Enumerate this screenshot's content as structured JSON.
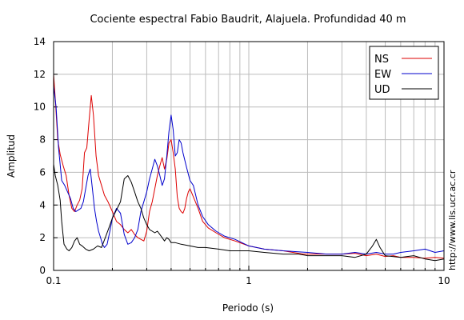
{
  "chart_data": {
    "type": "line",
    "title": "Cociente espectral Fabio Baudrit, Alajuela. Profundidad 40 m",
    "xlabel": "Periodo (s)",
    "ylabel": "Amplitud",
    "xscale": "log",
    "xlim": [
      0.1,
      10
    ],
    "ylim": [
      0,
      14
    ],
    "x_ticks": [
      0.1,
      1,
      10
    ],
    "x_tick_labels": [
      "0.1",
      "1",
      "10"
    ],
    "y_ticks": [
      0,
      2,
      4,
      6,
      8,
      10,
      12,
      14
    ],
    "y_tick_labels": [
      "0",
      "2",
      "4",
      "6",
      "8",
      "10",
      "12",
      "14"
    ],
    "grid": true,
    "legend_position": "top-right",
    "series": [
      {
        "name": "NS",
        "color": "#dd0000",
        "points": [
          [
            0.1,
            12.0
          ],
          [
            0.102,
            10.5
          ],
          [
            0.105,
            8.0
          ],
          [
            0.108,
            7.1
          ],
          [
            0.112,
            6.4
          ],
          [
            0.116,
            5.8
          ],
          [
            0.12,
            4.6
          ],
          [
            0.124,
            3.8
          ],
          [
            0.128,
            3.6
          ],
          [
            0.132,
            4.0
          ],
          [
            0.136,
            4.3
          ],
          [
            0.14,
            5.0
          ],
          [
            0.144,
            7.2
          ],
          [
            0.148,
            7.5
          ],
          [
            0.152,
            9.2
          ],
          [
            0.156,
            10.7
          ],
          [
            0.16,
            9.5
          ],
          [
            0.165,
            7.0
          ],
          [
            0.17,
            5.8
          ],
          [
            0.176,
            5.2
          ],
          [
            0.182,
            4.6
          ],
          [
            0.19,
            4.2
          ],
          [
            0.2,
            3.6
          ],
          [
            0.21,
            3.0
          ],
          [
            0.22,
            2.8
          ],
          [
            0.23,
            2.5
          ],
          [
            0.24,
            2.3
          ],
          [
            0.25,
            2.5
          ],
          [
            0.26,
            2.2
          ],
          [
            0.27,
            2.0
          ],
          [
            0.28,
            1.9
          ],
          [
            0.29,
            1.8
          ],
          [
            0.3,
            2.4
          ],
          [
            0.31,
            3.6
          ],
          [
            0.32,
            4.2
          ],
          [
            0.33,
            5.0
          ],
          [
            0.34,
            5.8
          ],
          [
            0.35,
            6.4
          ],
          [
            0.36,
            6.9
          ],
          [
            0.37,
            6.2
          ],
          [
            0.38,
            6.8
          ],
          [
            0.39,
            7.8
          ],
          [
            0.4,
            8.0
          ],
          [
            0.41,
            7.2
          ],
          [
            0.42,
            6.2
          ],
          [
            0.43,
            4.5
          ],
          [
            0.44,
            3.8
          ],
          [
            0.45,
            3.6
          ],
          [
            0.46,
            3.5
          ],
          [
            0.47,
            3.8
          ],
          [
            0.48,
            4.4
          ],
          [
            0.49,
            4.8
          ],
          [
            0.5,
            5.0
          ],
          [
            0.52,
            4.5
          ],
          [
            0.55,
            3.8
          ],
          [
            0.58,
            3.0
          ],
          [
            0.62,
            2.6
          ],
          [
            0.68,
            2.3
          ],
          [
            0.75,
            2.0
          ],
          [
            0.85,
            1.8
          ],
          [
            1.0,
            1.5
          ],
          [
            1.2,
            1.3
          ],
          [
            1.5,
            1.2
          ],
          [
            1.9,
            1.0
          ],
          [
            2.5,
            1.0
          ],
          [
            3.0,
            1.0
          ],
          [
            3.5,
            1.05
          ],
          [
            4.0,
            0.9
          ],
          [
            4.5,
            1.0
          ],
          [
            5.0,
            0.85
          ],
          [
            5.5,
            0.9
          ],
          [
            6.0,
            0.8
          ],
          [
            7.0,
            0.8
          ],
          [
            8.0,
            0.75
          ],
          [
            9.0,
            0.8
          ],
          [
            10.0,
            0.75
          ]
        ]
      },
      {
        "name": "EW",
        "color": "#0000cc",
        "points": [
          [
            0.1,
            11.3
          ],
          [
            0.103,
            10.0
          ],
          [
            0.106,
            7.5
          ],
          [
            0.11,
            5.5
          ],
          [
            0.114,
            5.2
          ],
          [
            0.118,
            4.8
          ],
          [
            0.122,
            4.4
          ],
          [
            0.126,
            3.8
          ],
          [
            0.13,
            3.6
          ],
          [
            0.134,
            3.7
          ],
          [
            0.138,
            3.8
          ],
          [
            0.142,
            4.2
          ],
          [
            0.146,
            5.0
          ],
          [
            0.15,
            5.8
          ],
          [
            0.154,
            6.2
          ],
          [
            0.158,
            5.0
          ],
          [
            0.162,
            3.8
          ],
          [
            0.166,
            3.0
          ],
          [
            0.17,
            2.4
          ],
          [
            0.174,
            2.0
          ],
          [
            0.178,
            1.6
          ],
          [
            0.182,
            1.4
          ],
          [
            0.188,
            1.6
          ],
          [
            0.195,
            2.5
          ],
          [
            0.2,
            3.2
          ],
          [
            0.21,
            3.8
          ],
          [
            0.22,
            3.5
          ],
          [
            0.23,
            2.2
          ],
          [
            0.24,
            1.6
          ],
          [
            0.25,
            1.7
          ],
          [
            0.26,
            2.0
          ],
          [
            0.27,
            2.5
          ],
          [
            0.28,
            3.6
          ],
          [
            0.29,
            4.2
          ],
          [
            0.3,
            4.8
          ],
          [
            0.31,
            5.6
          ],
          [
            0.32,
            6.2
          ],
          [
            0.33,
            6.8
          ],
          [
            0.34,
            6.4
          ],
          [
            0.35,
            5.8
          ],
          [
            0.36,
            5.2
          ],
          [
            0.37,
            5.6
          ],
          [
            0.38,
            7.0
          ],
          [
            0.39,
            8.5
          ],
          [
            0.4,
            9.5
          ],
          [
            0.41,
            8.6
          ],
          [
            0.42,
            7.0
          ],
          [
            0.43,
            7.2
          ],
          [
            0.44,
            8.0
          ],
          [
            0.45,
            7.8
          ],
          [
            0.46,
            7.2
          ],
          [
            0.48,
            6.3
          ],
          [
            0.5,
            5.5
          ],
          [
            0.52,
            5.2
          ],
          [
            0.55,
            4.0
          ],
          [
            0.58,
            3.3
          ],
          [
            0.62,
            2.8
          ],
          [
            0.68,
            2.4
          ],
          [
            0.75,
            2.1
          ],
          [
            0.85,
            1.9
          ],
          [
            1.0,
            1.5
          ],
          [
            1.2,
            1.3
          ],
          [
            1.5,
            1.2
          ],
          [
            2.0,
            1.1
          ],
          [
            2.5,
            1.0
          ],
          [
            3.0,
            1.0
          ],
          [
            3.5,
            1.1
          ],
          [
            4.0,
            1.0
          ],
          [
            4.5,
            1.1
          ],
          [
            5.0,
            1.0
          ],
          [
            5.5,
            1.0
          ],
          [
            6.0,
            1.1
          ],
          [
            7.0,
            1.2
          ],
          [
            8.0,
            1.3
          ],
          [
            9.0,
            1.1
          ],
          [
            10.0,
            1.2
          ]
        ]
      },
      {
        "name": "UD",
        "color": "#000000",
        "points": [
          [
            0.1,
            6.5
          ],
          [
            0.102,
            5.8
          ],
          [
            0.105,
            5.2
          ],
          [
            0.108,
            4.3
          ],
          [
            0.11,
            3.0
          ],
          [
            0.113,
            1.6
          ],
          [
            0.117,
            1.3
          ],
          [
            0.12,
            1.2
          ],
          [
            0.124,
            1.4
          ],
          [
            0.128,
            1.8
          ],
          [
            0.132,
            2.0
          ],
          [
            0.136,
            1.6
          ],
          [
            0.14,
            1.5
          ],
          [
            0.146,
            1.3
          ],
          [
            0.152,
            1.2
          ],
          [
            0.16,
            1.3
          ],
          [
            0.168,
            1.5
          ],
          [
            0.176,
            1.4
          ],
          [
            0.184,
            2.0
          ],
          [
            0.192,
            2.6
          ],
          [
            0.2,
            3.2
          ],
          [
            0.21,
            3.7
          ],
          [
            0.22,
            4.2
          ],
          [
            0.23,
            5.6
          ],
          [
            0.24,
            5.8
          ],
          [
            0.25,
            5.4
          ],
          [
            0.26,
            4.8
          ],
          [
            0.27,
            4.2
          ],
          [
            0.28,
            3.8
          ],
          [
            0.29,
            3.2
          ],
          [
            0.3,
            2.8
          ],
          [
            0.31,
            2.5
          ],
          [
            0.32,
            2.4
          ],
          [
            0.33,
            2.3
          ],
          [
            0.34,
            2.4
          ],
          [
            0.35,
            2.2
          ],
          [
            0.36,
            2.0
          ],
          [
            0.37,
            1.8
          ],
          [
            0.38,
            2.0
          ],
          [
            0.39,
            1.9
          ],
          [
            0.4,
            1.7
          ],
          [
            0.42,
            1.7
          ],
          [
            0.45,
            1.6
          ],
          [
            0.5,
            1.5
          ],
          [
            0.55,
            1.4
          ],
          [
            0.6,
            1.4
          ],
          [
            0.7,
            1.3
          ],
          [
            0.8,
            1.2
          ],
          [
            0.9,
            1.2
          ],
          [
            1.0,
            1.2
          ],
          [
            1.2,
            1.1
          ],
          [
            1.5,
            1.0
          ],
          [
            1.8,
            1.0
          ],
          [
            2.0,
            0.9
          ],
          [
            2.5,
            0.9
          ],
          [
            3.0,
            0.9
          ],
          [
            3.5,
            0.8
          ],
          [
            4.0,
            1.0
          ],
          [
            4.3,
            1.5
          ],
          [
            4.5,
            1.9
          ],
          [
            4.7,
            1.4
          ],
          [
            5.0,
            0.9
          ],
          [
            6.0,
            0.8
          ],
          [
            7.0,
            0.9
          ],
          [
            8.0,
            0.7
          ],
          [
            9.0,
            0.6
          ],
          [
            10.0,
            0.7
          ]
        ]
      }
    ]
  },
  "side_note": "http://www.lis.ucr.ac.cr"
}
